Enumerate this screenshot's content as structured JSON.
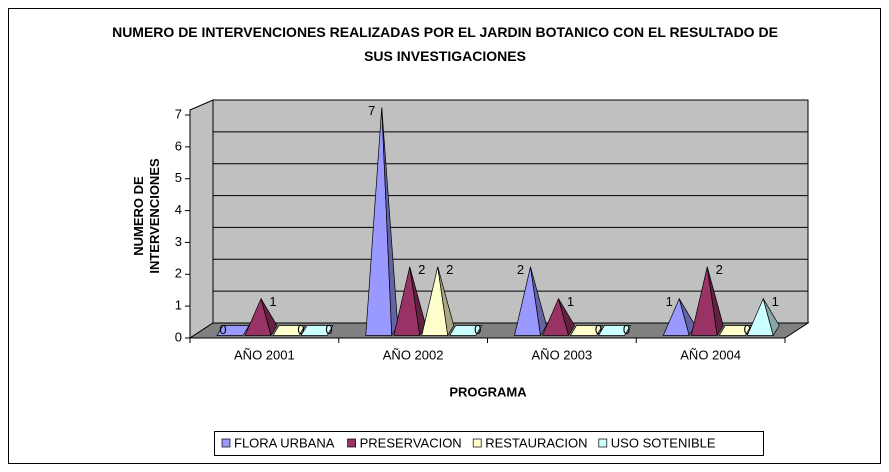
{
  "chart_data": {
    "type": "pyramid3d",
    "title": "NUMERO DE INTERVENCIONES REALIZADAS POR EL JARDIN BOTANICO CON EL RESULTADO DE SUS INVESTIGACIONES",
    "y_label": "NUMERO DE INTERVENCIONES",
    "x_label": "PROGRAMA",
    "categories": [
      "AÑO 2001",
      "AÑO 2002",
      "AÑO 2003",
      "AÑO 2004"
    ],
    "series": [
      {
        "name": "FLORA URBANA",
        "color": "#9999ff",
        "values": [
          0,
          7,
          2,
          1
        ]
      },
      {
        "name": "PRESERVACION",
        "color": "#993366",
        "values": [
          1,
          2,
          1,
          2
        ]
      },
      {
        "name": "RESTAURACION",
        "color": "#ffffcc",
        "values": [
          0,
          2,
          0,
          0
        ]
      },
      {
        "name": "USO SOTENIBLE",
        "color": "#ccffff",
        "values": [
          0,
          0,
          0,
          1
        ]
      }
    ],
    "ylim": [
      0,
      7
    ],
    "yticks": [
      0,
      1,
      2,
      3,
      4,
      5,
      6,
      7
    ],
    "grid": true,
    "legend": "bottom"
  }
}
